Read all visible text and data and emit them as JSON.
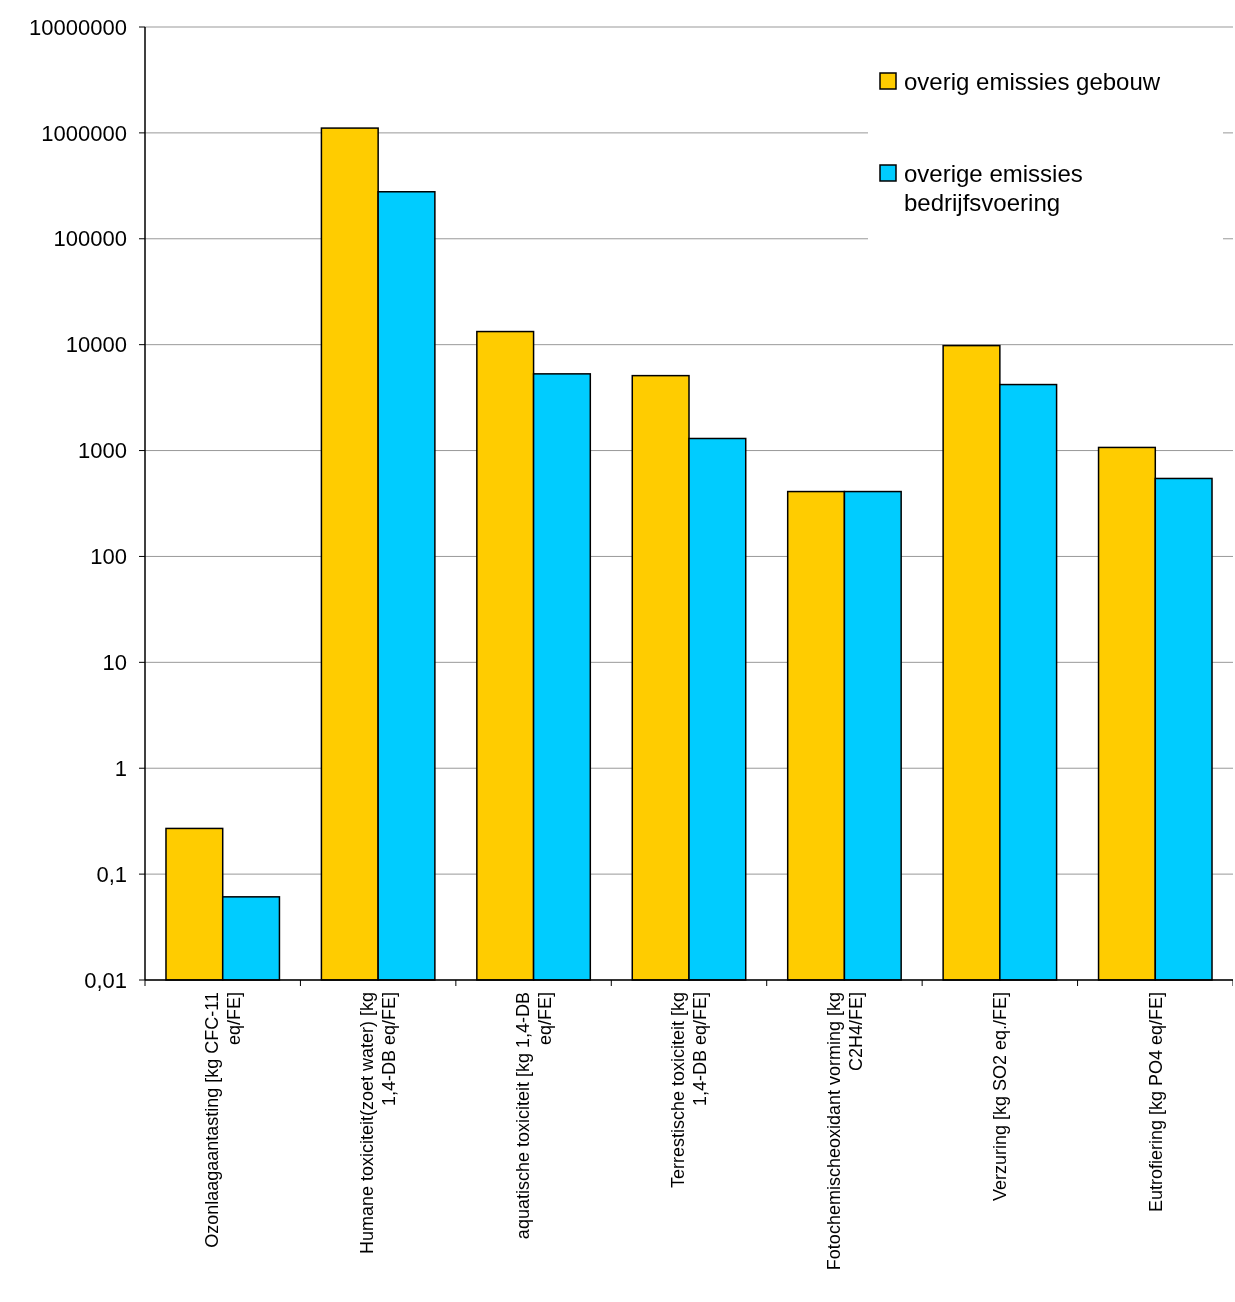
{
  "chart_data": {
    "type": "bar",
    "categories": [
      "Ozonlaagaantasting [kg CFC-11 eq/FE]",
      "Humane toxiciteit(zoet water) [kg 1,4-DB eq/FE]",
      "aquatische toxiciteit [kg 1,4-DB eq/FE]",
      "Terrestische toxiciteit [kg 1,4-DB eq/FE]",
      "Fotochemischeoxidant vorming [kg C2H4/FE]",
      "Verzuring [kg SO2 eq./FE]",
      "Eutrofiering [kg PO4 eq/FE]"
    ],
    "series": [
      {
        "name": "overig emissies gebouw",
        "color": "#ffcc00",
        "values": [
          0.27,
          1110000,
          13300,
          5100,
          410,
          9800,
          1070
        ]
      },
      {
        "name": "overige emissies bedrijfsvoering",
        "color": "#00ccff",
        "values": [
          0.061,
          278000,
          5300,
          1300,
          410,
          4200,
          545
        ]
      }
    ],
    "log": true,
    "ylim": [
      0.01,
      10000000
    ],
    "yticks": [
      {
        "value": 0.01,
        "label": "0,01"
      },
      {
        "value": 0.1,
        "label": "0,1"
      },
      1,
      10,
      100,
      1000,
      10000,
      100000,
      1000000,
      10000000
    ],
    "grid": "y",
    "legend": "top right"
  }
}
